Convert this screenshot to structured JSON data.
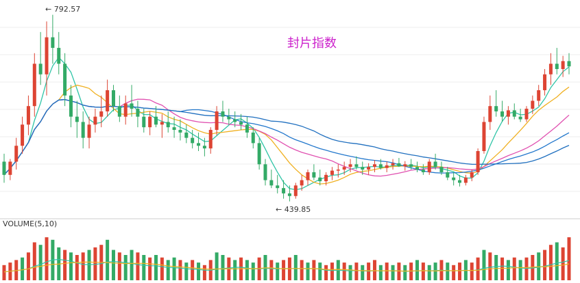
{
  "chart_data": {
    "type": "candlestick",
    "title": "封片指数",
    "price_range_visible": [
      439.85,
      792.57
    ],
    "annotations": {
      "high_label": "792.57",
      "low_label": "439.85"
    },
    "volume_panel": {
      "label": "VOLUME(5,10)"
    },
    "colors": {
      "up": "#dd4433",
      "down": "#33aa66",
      "ma_short": "#2ec4a6",
      "ma_mid": "#f0b020",
      "ma_long": "#e050b0",
      "ma_xlong": "#2277cc",
      "ma_xxlong": "#1f6fbf",
      "title": "#cc22cc",
      "grid": "#dddddd"
    },
    "candles": [
      [
        515,
        530,
        475,
        490
      ],
      [
        490,
        520,
        480,
        515
      ],
      [
        515,
        560,
        500,
        545
      ],
      [
        545,
        600,
        530,
        585
      ],
      [
        585,
        640,
        565,
        620
      ],
      [
        620,
        720,
        600,
        700
      ],
      [
        700,
        760,
        660,
        680
      ],
      [
        680,
        780,
        640,
        750
      ],
      [
        750,
        792.57,
        700,
        730
      ],
      [
        730,
        760,
        680,
        700
      ],
      [
        700,
        720,
        620,
        640
      ],
      [
        640,
        660,
        580,
        600
      ],
      [
        600,
        630,
        560,
        590
      ],
      [
        590,
        610,
        540,
        560
      ],
      [
        560,
        600,
        540,
        585
      ],
      [
        585,
        615,
        570,
        600
      ],
      [
        600,
        640,
        580,
        610
      ],
      [
        610,
        670,
        600,
        650
      ],
      [
        650,
        660,
        610,
        620
      ],
      [
        620,
        640,
        590,
        600
      ],
      [
        600,
        640,
        585,
        625
      ],
      [
        625,
        660,
        600,
        615
      ],
      [
        615,
        630,
        580,
        600
      ],
      [
        600,
        615,
        570,
        580
      ],
      [
        580,
        610,
        565,
        600
      ],
      [
        600,
        620,
        580,
        585
      ],
      [
        585,
        605,
        560,
        590
      ],
      [
        590,
        610,
        570,
        580
      ],
      [
        580,
        600,
        560,
        575
      ],
      [
        575,
        595,
        555,
        570
      ],
      [
        570,
        585,
        550,
        560
      ],
      [
        560,
        575,
        540,
        550
      ],
      [
        550,
        570,
        535,
        545
      ],
      [
        545,
        560,
        525,
        540
      ],
      [
        540,
        580,
        530,
        575
      ],
      [
        575,
        620,
        565,
        610
      ],
      [
        610,
        630,
        590,
        600
      ],
      [
        600,
        615,
        585,
        595
      ],
      [
        595,
        610,
        580,
        590
      ],
      [
        590,
        605,
        575,
        585
      ],
      [
        585,
        600,
        560,
        570
      ],
      [
        570,
        580,
        540,
        550
      ],
      [
        550,
        560,
        500,
        510
      ],
      [
        510,
        520,
        470,
        480
      ],
      [
        480,
        500,
        465,
        470
      ],
      [
        470,
        490,
        455,
        465
      ],
      [
        465,
        480,
        445,
        455
      ],
      [
        455,
        470,
        439.85,
        450
      ],
      [
        450,
        475,
        445,
        470
      ],
      [
        470,
        490,
        460,
        480
      ],
      [
        480,
        500,
        470,
        495
      ],
      [
        495,
        510,
        480,
        485
      ],
      [
        485,
        500,
        470,
        478
      ],
      [
        478,
        495,
        470,
        490
      ],
      [
        490,
        505,
        480,
        498
      ],
      [
        498,
        510,
        485,
        500
      ],
      [
        500,
        515,
        490,
        505
      ],
      [
        505,
        520,
        495,
        510
      ],
      [
        510,
        525,
        500,
        505
      ],
      [
        505,
        515,
        490,
        500
      ],
      [
        500,
        512,
        490,
        505
      ],
      [
        505,
        518,
        495,
        510
      ],
      [
        510,
        520,
        500,
        503
      ],
      [
        503,
        515,
        495,
        508
      ],
      [
        508,
        520,
        500,
        512
      ],
      [
        512,
        522,
        505,
        506
      ],
      [
        506,
        516,
        498,
        510
      ],
      [
        510,
        520,
        500,
        505
      ],
      [
        505,
        515,
        495,
        500
      ],
      [
        500,
        510,
        490,
        495
      ],
      [
        495,
        520,
        490,
        515
      ],
      [
        515,
        530,
        500,
        505
      ],
      [
        505,
        515,
        490,
        495
      ],
      [
        495,
        505,
        480,
        485
      ],
      [
        485,
        495,
        470,
        480
      ],
      [
        480,
        490,
        468,
        475
      ],
      [
        475,
        490,
        470,
        485
      ],
      [
        485,
        500,
        478,
        495
      ],
      [
        495,
        540,
        490,
        535
      ],
      [
        535,
        600,
        530,
        590
      ],
      [
        590,
        640,
        575,
        620
      ],
      [
        620,
        650,
        600,
        610
      ],
      [
        610,
        630,
        590,
        600
      ],
      [
        600,
        620,
        585,
        612
      ],
      [
        612,
        625,
        595,
        600
      ],
      [
        600,
        615,
        590,
        595
      ],
      [
        595,
        620,
        590,
        615
      ],
      [
        615,
        640,
        605,
        630
      ],
      [
        630,
        660,
        620,
        650
      ],
      [
        650,
        690,
        640,
        680
      ],
      [
        680,
        720,
        660,
        700
      ],
      [
        700,
        730,
        680,
        690
      ],
      [
        690,
        715,
        675,
        705
      ],
      [
        705,
        720,
        680,
        695
      ]
    ],
    "volumes": [
      0.3,
      0.35,
      0.4,
      0.45,
      0.55,
      0.75,
      0.7,
      0.85,
      0.8,
      0.65,
      0.6,
      0.55,
      0.5,
      0.55,
      0.6,
      0.65,
      0.7,
      0.8,
      0.6,
      0.55,
      0.5,
      0.6,
      0.55,
      0.5,
      0.45,
      0.5,
      0.45,
      0.4,
      0.45,
      0.4,
      0.35,
      0.4,
      0.35,
      0.3,
      0.4,
      0.55,
      0.5,
      0.45,
      0.4,
      0.45,
      0.4,
      0.35,
      0.45,
      0.5,
      0.4,
      0.35,
      0.4,
      0.45,
      0.5,
      0.4,
      0.35,
      0.4,
      0.35,
      0.3,
      0.35,
      0.4,
      0.35,
      0.3,
      0.35,
      0.3,
      0.35,
      0.4,
      0.3,
      0.35,
      0.3,
      0.35,
      0.3,
      0.35,
      0.4,
      0.35,
      0.3,
      0.35,
      0.4,
      0.35,
      0.3,
      0.35,
      0.4,
      0.35,
      0.45,
      0.6,
      0.55,
      0.5,
      0.45,
      0.4,
      0.45,
      0.4,
      0.45,
      0.5,
      0.55,
      0.6,
      0.7,
      0.75,
      0.65,
      0.85
    ],
    "volume_up": [
      1,
      1,
      1,
      0,
      1,
      1,
      0,
      1,
      0,
      0,
      1,
      0,
      1,
      1,
      0,
      1,
      1,
      0,
      0,
      1,
      0,
      0,
      1,
      0,
      1,
      0,
      1,
      0,
      0,
      1,
      0,
      1,
      0,
      1,
      1,
      0,
      0,
      1,
      0,
      1,
      0,
      0,
      1,
      0,
      1,
      0,
      1,
      1,
      0,
      1,
      0,
      1,
      0,
      1,
      1,
      0,
      1,
      0,
      1,
      0,
      1,
      1,
      0,
      1,
      0,
      1,
      0,
      1,
      0,
      1,
      0,
      0,
      1,
      0,
      1,
      1,
      0,
      1,
      1,
      0,
      1,
      0,
      1,
      0,
      1,
      0,
      1,
      1,
      0,
      1,
      1,
      0,
      1,
      1
    ]
  }
}
